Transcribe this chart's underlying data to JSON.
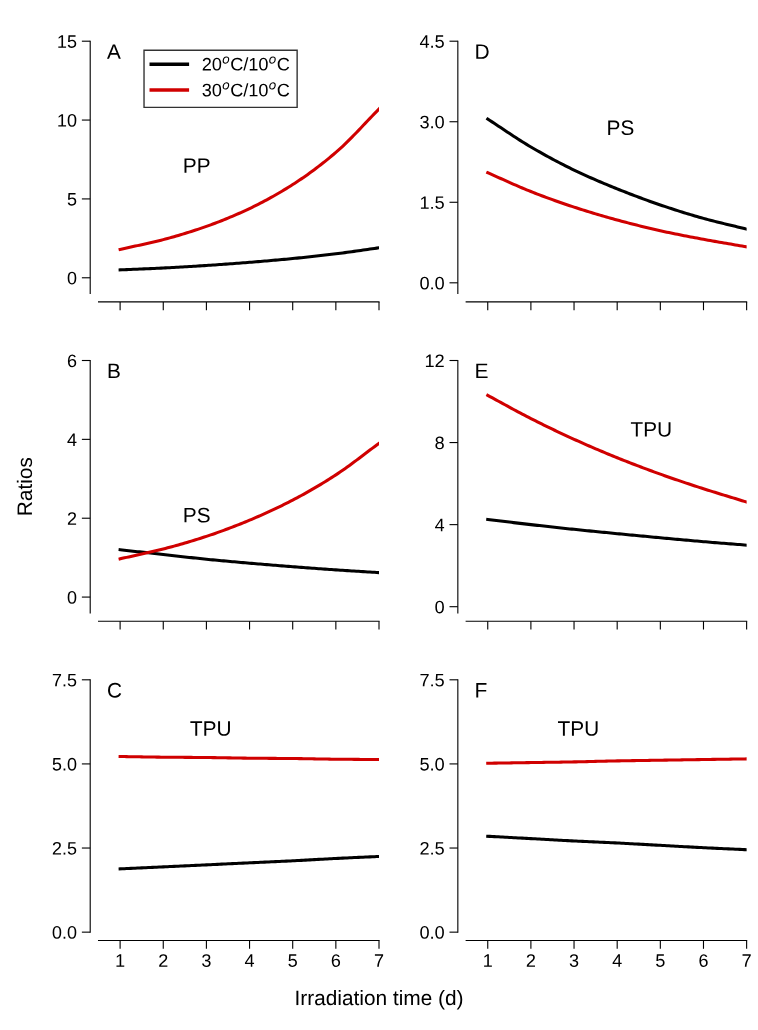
{
  "chart_data": [
    {
      "type": "line",
      "x": [
        1,
        2,
        3,
        4,
        5,
        6,
        7
      ],
      "xlim": [
        0.5,
        7
      ],
      "xticks": [
        1,
        2,
        3,
        4,
        5,
        6,
        7
      ],
      "ylim": [
        -1,
        15
      ],
      "yticks": [
        0,
        5,
        10,
        15
      ],
      "tick_labels": "y",
      "legend": "top left",
      "annotations": [
        "A",
        "PP"
      ],
      "series": [
        {
          "name": "20$^{o}$C/10$^{o}$C",
          "color": "#000000",
          "values": [
            0.5,
            0.62,
            0.78,
            0.98,
            1.22,
            1.52,
            1.9
          ]
        },
        {
          "name": "30$^{o}$C/10$^{o}$C",
          "color": "#d00000",
          "values": [
            1.8,
            2.42,
            3.26,
            4.39,
            5.91,
            7.95,
            10.7
          ]
        }
      ]
    },
    {
      "type": "line",
      "x": [
        1,
        2,
        3,
        4,
        5,
        6,
        7
      ],
      "xlim": [
        0.5,
        7
      ],
      "xticks": [
        1,
        2,
        3,
        4,
        5,
        6,
        7
      ],
      "ylim": [
        -0.2,
        4.5
      ],
      "yticks": [
        {
          "value": 0,
          "label": "0.0"
        },
        1.5,
        {
          "value": 3,
          "label": "3.0"
        },
        4.5
      ],
      "tick_labels": "y",
      "annotations": [
        "D",
        "PS"
      ],
      "series": [
        {
          "color": "#000000",
          "values": [
            3.05,
            2.53,
            2.1,
            1.75,
            1.45,
            1.2,
            1.0
          ]
        },
        {
          "color": "#d00000",
          "values": [
            2.05,
            1.7,
            1.41,
            1.17,
            0.97,
            0.81,
            0.67
          ]
        }
      ]
    },
    {
      "type": "line",
      "x": [
        1,
        2,
        3,
        4,
        5,
        6,
        7
      ],
      "xlim": [
        0.5,
        7
      ],
      "xticks": [
        1,
        2,
        3,
        4,
        5,
        6,
        7
      ],
      "ylim": [
        -0.4,
        6
      ],
      "yticks": [
        0,
        2,
        4,
        6
      ],
      "tick_labels": "y",
      "ylabel": "Ratios",
      "annotations": [
        "B",
        "PS"
      ],
      "series": [
        {
          "color": "#000000",
          "values": [
            1.2,
            1.08,
            0.96,
            0.86,
            0.77,
            0.69,
            0.62
          ]
        },
        {
          "color": "#d00000",
          "values": [
            0.97,
            1.22,
            1.54,
            1.95,
            2.46,
            3.1,
            3.9
          ]
        }
      ]
    },
    {
      "type": "line",
      "x": [
        1,
        2,
        3,
        4,
        5,
        6,
        7
      ],
      "xlim": [
        0.5,
        7
      ],
      "xticks": [
        1,
        2,
        3,
        4,
        5,
        6,
        7
      ],
      "ylim": [
        -0.3,
        12
      ],
      "yticks": [
        0,
        4,
        8,
        12
      ],
      "tick_labels": "y",
      "annotations": [
        "E",
        "TPU"
      ],
      "series": [
        {
          "color": "#000000",
          "values": [
            4.25,
            4.0,
            3.77,
            3.56,
            3.36,
            3.17,
            3.0
          ]
        },
        {
          "color": "#d00000",
          "values": [
            10.3,
            9.17,
            8.16,
            7.26,
            6.46,
            5.75,
            5.1
          ]
        }
      ]
    },
    {
      "type": "line",
      "x": [
        1,
        2,
        3,
        4,
        5,
        6,
        7
      ],
      "xlim": [
        0.5,
        7
      ],
      "xticks": [
        1,
        2,
        3,
        4,
        5,
        6,
        7
      ],
      "ylim": [
        0,
        7.5
      ],
      "yticks": [
        {
          "value": 0,
          "label": "0.0"
        },
        2.5,
        {
          "value": 5,
          "label": "5.0"
        },
        7.5
      ],
      "xlabel": "Irradiation time (d)",
      "annotations": [
        "C",
        "TPU"
      ],
      "series": [
        {
          "color": "#000000",
          "values": [
            1.88,
            1.94,
            2.0,
            2.06,
            2.12,
            2.19,
            2.25
          ]
        },
        {
          "color": "#d00000",
          "values": [
            5.22,
            5.2,
            5.19,
            5.17,
            5.16,
            5.14,
            5.13
          ]
        }
      ]
    },
    {
      "type": "line",
      "x": [
        1,
        2,
        3,
        4,
        5,
        6,
        7
      ],
      "xlim": [
        0.5,
        7
      ],
      "xticks": [
        1,
        2,
        3,
        4,
        5,
        6,
        7
      ],
      "ylim": [
        0,
        7.5
      ],
      "yticks": [
        {
          "value": 0,
          "label": "0.0"
        },
        2.5,
        {
          "value": 5,
          "label": "5.0"
        },
        7.5
      ],
      "annotations": [
        "F",
        "TPU"
      ],
      "series": [
        {
          "color": "#000000",
          "values": [
            2.85,
            2.78,
            2.71,
            2.65,
            2.58,
            2.51,
            2.45
          ]
        },
        {
          "color": "#d00000",
          "values": [
            5.02,
            5.04,
            5.06,
            5.09,
            5.11,
            5.13,
            5.15
          ]
        }
      ]
    }
  ]
}
